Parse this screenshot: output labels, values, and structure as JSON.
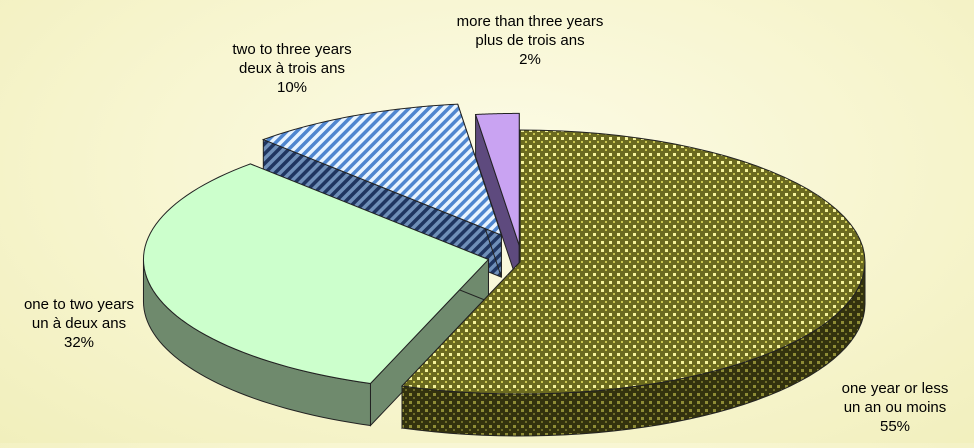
{
  "chart_data": {
    "type": "pie",
    "subtype": "3d-exploded",
    "title": "",
    "slices": [
      {
        "label_en": "one year or less",
        "label_fr": "un an ou moins",
        "value": 55,
        "value_label": "55%",
        "fill": "#d9d65a",
        "side": "#5c5a1e",
        "pattern": "dots"
      },
      {
        "label_en": "one to two years",
        "label_fr": "un à deux ans",
        "value": 32,
        "value_label": "32%",
        "fill": "#ccffcc",
        "side": "#6f8a6d",
        "pattern": "solid"
      },
      {
        "label_en": "two to three years",
        "label_fr": "deux à trois ans",
        "value": 10,
        "value_label": "10%",
        "fill": "#a6cffa",
        "side": "#2f4d7a",
        "pattern": "diagonal-stripes"
      },
      {
        "label_en": "more than three years",
        "label_fr": "plus de trois ans",
        "value": 2,
        "value_label": "2%",
        "fill": "#c9a3f2",
        "side": "#5e4a7e",
        "pattern": "solid"
      }
    ],
    "legend": "none",
    "background": "#f7f5cf"
  }
}
